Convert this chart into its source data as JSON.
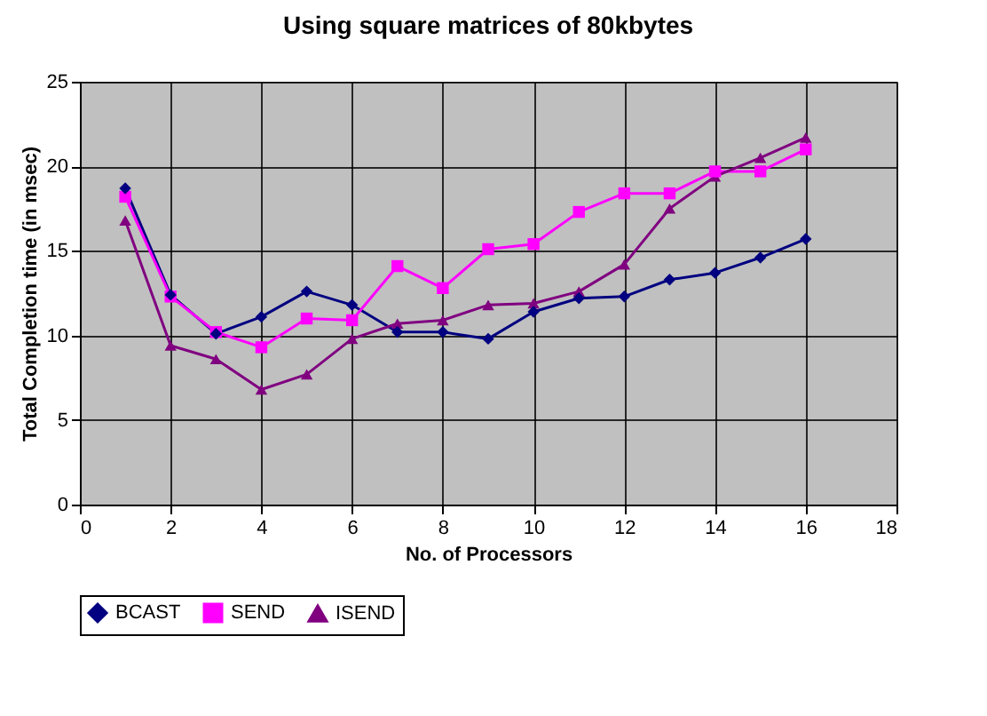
{
  "chart_data": {
    "type": "line",
    "title": "Using square matrices of 80kbytes",
    "xlabel": "No. of Processors",
    "ylabel": "Total Completion time (in msec)",
    "x": [
      1,
      2,
      3,
      4,
      5,
      6,
      7,
      8,
      9,
      10,
      11,
      12,
      13,
      14,
      15,
      16
    ],
    "series": [
      {
        "name": "BCAST",
        "color": "#000080",
        "marker": "diamond",
        "values": [
          18.7,
          12.4,
          10.1,
          11.1,
          12.6,
          11.8,
          10.2,
          10.2,
          9.8,
          11.4,
          12.2,
          12.3,
          13.3,
          13.7,
          14.6,
          15.7
        ]
      },
      {
        "name": "SEND",
        "color": "#ff00ff",
        "marker": "square",
        "values": [
          18.2,
          12.3,
          10.2,
          9.3,
          11.0,
          10.9,
          14.1,
          12.8,
          15.1,
          15.4,
          17.3,
          18.4,
          18.4,
          19.7,
          19.7,
          21.0
        ]
      },
      {
        "name": "ISEND",
        "color": "#800080",
        "marker": "triangle",
        "values": [
          16.8,
          9.4,
          8.6,
          6.8,
          7.7,
          9.8,
          10.7,
          10.9,
          11.8,
          11.9,
          12.6,
          14.2,
          17.5,
          19.4,
          20.5,
          21.7
        ]
      }
    ],
    "xlim": [
      0,
      18
    ],
    "xticks": [
      0,
      2,
      4,
      6,
      8,
      10,
      12,
      14,
      16,
      18
    ],
    "ylim": [
      0,
      25
    ],
    "yticks": [
      0,
      5,
      10,
      15,
      20,
      25
    ],
    "grid": true,
    "legend": "bottom",
    "line_style": "solid"
  }
}
